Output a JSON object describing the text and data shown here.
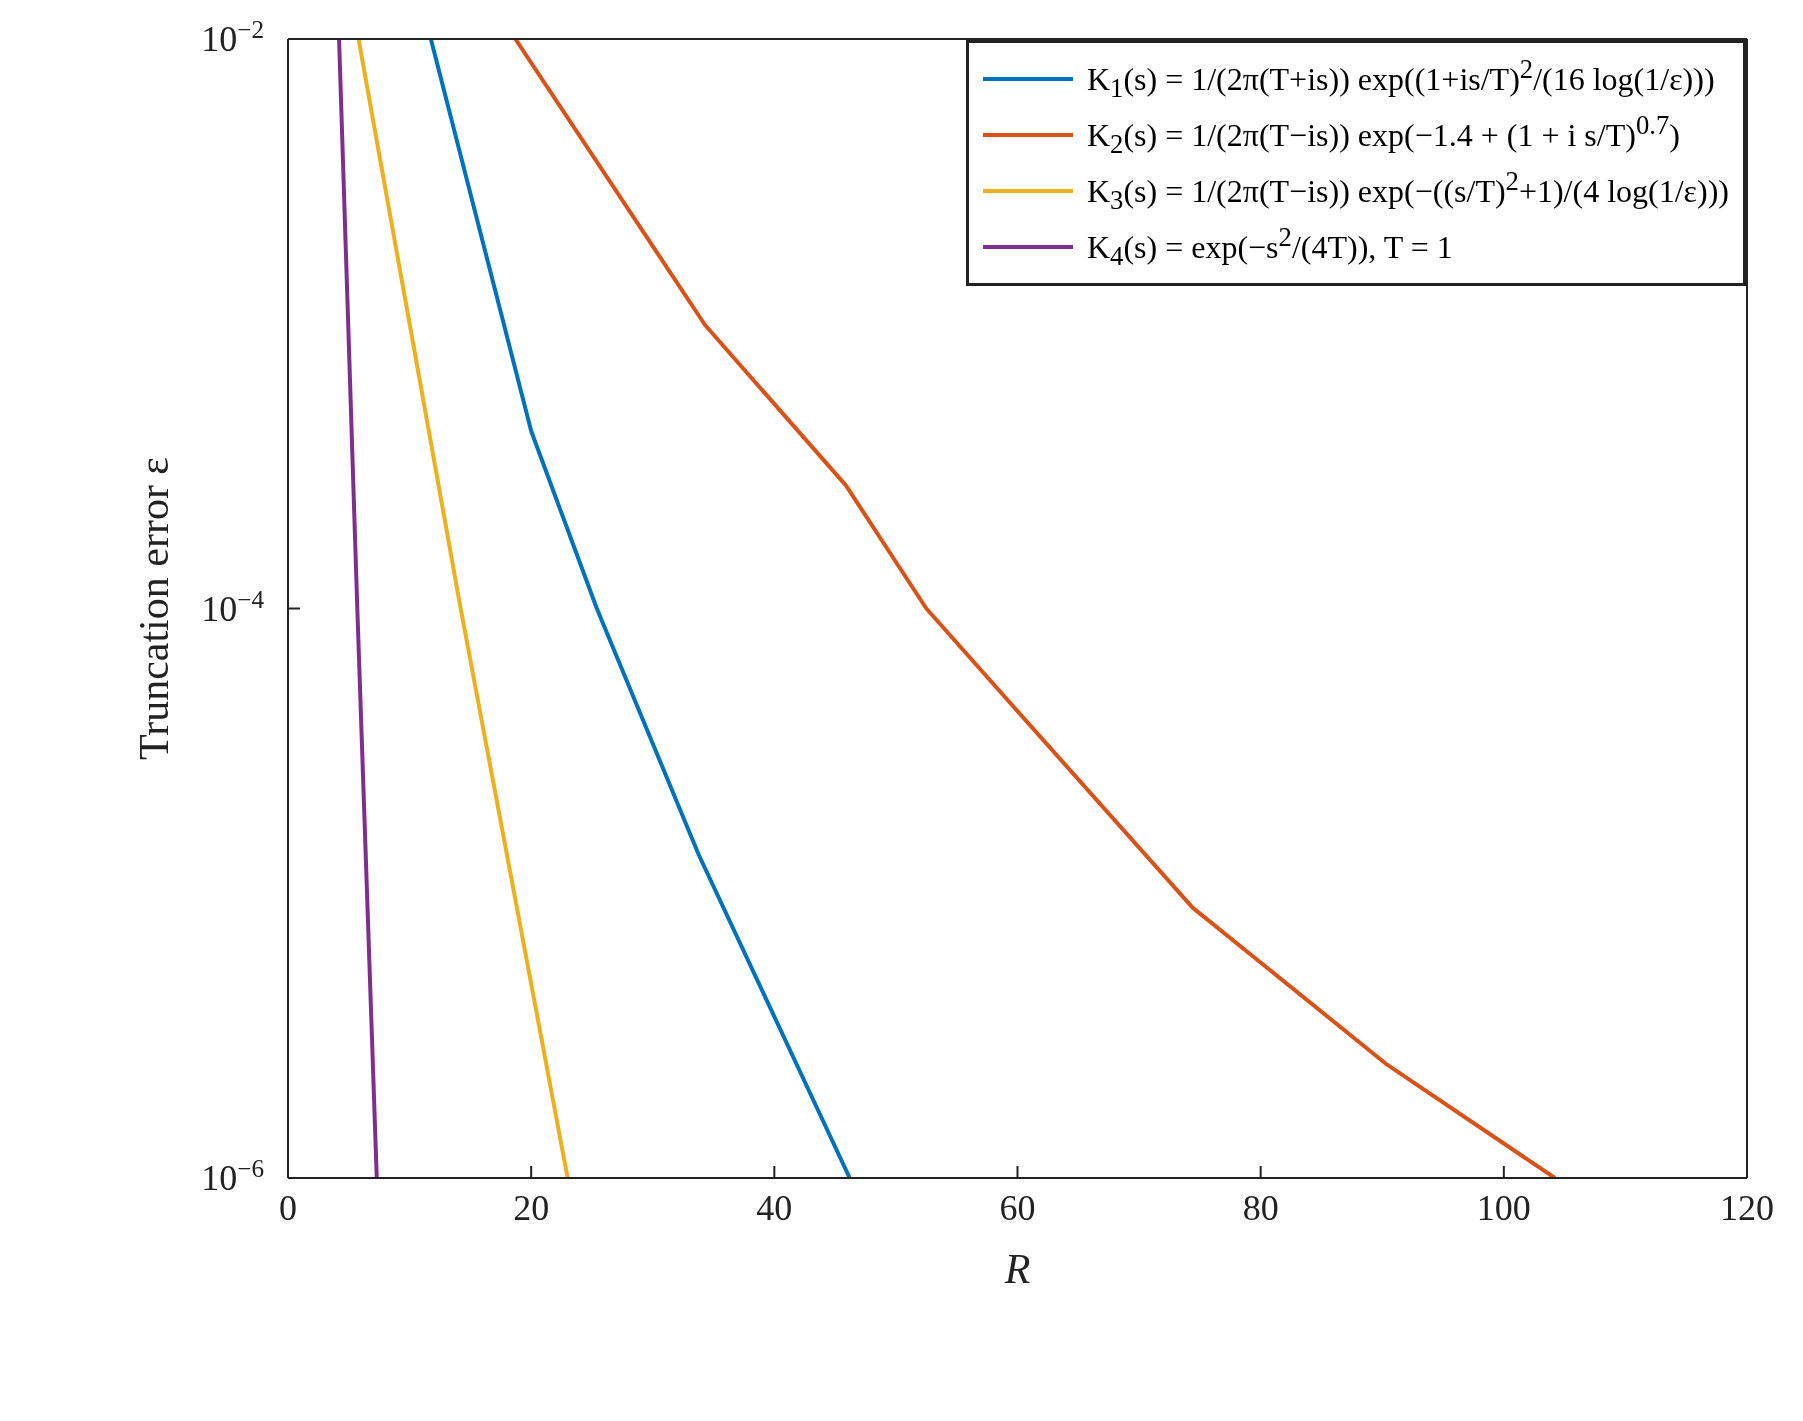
{
  "chart_data": {
    "type": "line",
    "xlabel": "R",
    "ylabel": "Truncation error ε",
    "log": "y",
    "grid": false,
    "legend": "top right",
    "marker": "none",
    "line_style": "solid",
    "xlim": [
      0,
      120
    ],
    "xticks": [
      0,
      20,
      40,
      60,
      80,
      100,
      120
    ],
    "ylim": [
      1e-06,
      0.01
    ],
    "yticks": [
      {
        "value": 1e-06,
        "label": "10$^{−6}$"
      },
      {
        "value": 0.0001,
        "label": "10$^{−4}$"
      },
      {
        "value": 0.01,
        "label": "10$^{−2}$"
      }
    ],
    "series": [
      {
        "name": "K$_{1}$(s) = 1/(2π(T+is)) exp((1+is/T)$^{2}$/(16 log(1/ε)))",
        "color": "#0072bd",
        "x": [
          11.75,
          20.0,
          25.4,
          33.8,
          46.2
        ],
        "values": [
          0.01,
          0.00042,
          0.0001,
          1.36e-05,
          1e-06
        ]
      },
      {
        "name": "K$_{2}$(s) = 1/(2π(T−is)) exp(−1.4 + (1 + i s/T)$^{0.7}$)",
        "color": "#d95319",
        "x": [
          18.7,
          34.3,
          45.9,
          52.5,
          62.8,
          74.4,
          90.4,
          104.2
        ],
        "values": [
          0.01,
          0.00099,
          0.00027,
          0.0001,
          3.2e-05,
          8.9e-06,
          2.5e-06,
          1e-06
        ]
      },
      {
        "name": "K$_{3}$(s) = 1/(2π(T−is)) exp(−((s/T)$^{2}$+1)/(4 log(1/ε)))",
        "color": "#edb120",
        "x": [
          5.8,
          14.2,
          23.0
        ],
        "values": [
          0.01,
          0.0001,
          1e-06
        ]
      },
      {
        "name": "K$_{4}$(s) = exp(−s$^{2}$/(4T)), T = 1",
        "color": "#7e2f8e",
        "x": [
          4.2,
          5.7,
          7.3
        ],
        "values": [
          0.01,
          0.0001,
          1e-06
        ]
      }
    ]
  }
}
